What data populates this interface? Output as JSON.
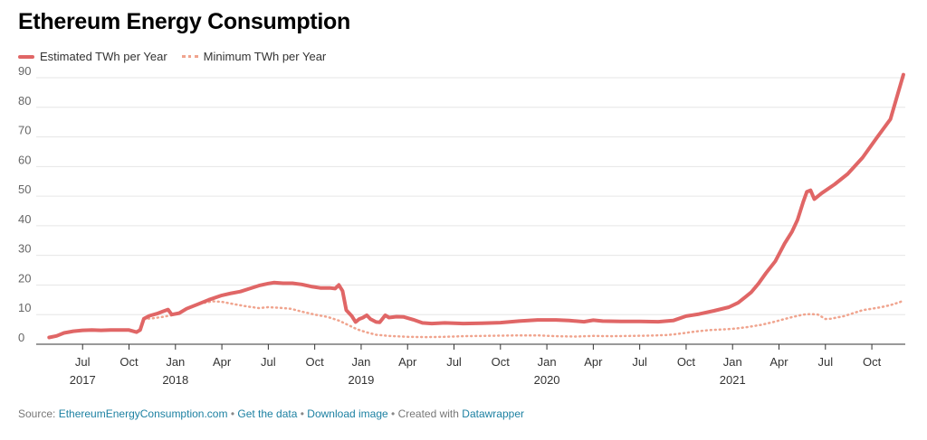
{
  "title": "Ethereum Energy Consumption",
  "footer": {
    "prefix": "Source:",
    "source_link": "EthereumEnergyConsumption.com",
    "get_data": "Get the data",
    "download": "Download image",
    "created_with": "Created with",
    "datawrapper": "Datawrapper",
    "separator": "•"
  },
  "chart_data": {
    "type": "line",
    "title": "Ethereum Energy Consumption",
    "xlabel": "",
    "ylabel": "",
    "ylim": [
      0,
      90
    ],
    "yticks": [
      0,
      10,
      20,
      30,
      40,
      50,
      60,
      70,
      80,
      90
    ],
    "grid": true,
    "legend_position": "top-left",
    "xticks": [
      {
        "t": 2017.5,
        "label": "Jul",
        "year": "2017"
      },
      {
        "t": 2017.75,
        "label": "Oct",
        "year": ""
      },
      {
        "t": 2018.0,
        "label": "Jan",
        "year": "2018"
      },
      {
        "t": 2018.25,
        "label": "Apr",
        "year": ""
      },
      {
        "t": 2018.5,
        "label": "Jul",
        "year": ""
      },
      {
        "t": 2018.75,
        "label": "Oct",
        "year": ""
      },
      {
        "t": 2019.0,
        "label": "Jan",
        "year": "2019"
      },
      {
        "t": 2019.25,
        "label": "Apr",
        "year": ""
      },
      {
        "t": 2019.5,
        "label": "Jul",
        "year": ""
      },
      {
        "t": 2019.75,
        "label": "Oct",
        "year": ""
      },
      {
        "t": 2020.0,
        "label": "Jan",
        "year": "2020"
      },
      {
        "t": 2020.25,
        "label": "Apr",
        "year": ""
      },
      {
        "t": 2020.5,
        "label": "Jul",
        "year": ""
      },
      {
        "t": 2020.75,
        "label": "Oct",
        "year": ""
      },
      {
        "t": 2021.0,
        "label": "Jan",
        "year": "2021"
      },
      {
        "t": 2021.25,
        "label": "Apr",
        "year": ""
      },
      {
        "t": 2021.5,
        "label": "Jul",
        "year": ""
      },
      {
        "t": 2021.75,
        "label": "Oct",
        "year": ""
      }
    ],
    "xlim": [
      2017.26,
      2021.93
    ],
    "series": [
      {
        "name": "Estimated TWh per Year",
        "style": "solid",
        "color": "#e06666",
        "points": [
          [
            2017.32,
            2.3
          ],
          [
            2017.36,
            2.8
          ],
          [
            2017.4,
            3.8
          ],
          [
            2017.45,
            4.4
          ],
          [
            2017.5,
            4.7
          ],
          [
            2017.55,
            4.8
          ],
          [
            2017.6,
            4.7
          ],
          [
            2017.65,
            4.8
          ],
          [
            2017.7,
            4.8
          ],
          [
            2017.75,
            4.8
          ],
          [
            2017.79,
            4.1
          ],
          [
            2017.81,
            4.8
          ],
          [
            2017.83,
            8.6
          ],
          [
            2017.86,
            9.6
          ],
          [
            2017.9,
            10.3
          ],
          [
            2017.93,
            11.0
          ],
          [
            2017.96,
            11.7
          ],
          [
            2017.98,
            10.0
          ],
          [
            2018.02,
            10.5
          ],
          [
            2018.06,
            12.0
          ],
          [
            2018.12,
            13.5
          ],
          [
            2018.18,
            15.0
          ],
          [
            2018.25,
            16.5
          ],
          [
            2018.3,
            17.2
          ],
          [
            2018.35,
            17.8
          ],
          [
            2018.4,
            18.8
          ],
          [
            2018.45,
            19.8
          ],
          [
            2018.5,
            20.5
          ],
          [
            2018.53,
            20.8
          ],
          [
            2018.58,
            20.6
          ],
          [
            2018.63,
            20.6
          ],
          [
            2018.68,
            20.2
          ],
          [
            2018.73,
            19.5
          ],
          [
            2018.78,
            19.0
          ],
          [
            2018.83,
            19.0
          ],
          [
            2018.86,
            18.8
          ],
          [
            2018.88,
            20.0
          ],
          [
            2018.9,
            18.0
          ],
          [
            2018.92,
            11.5
          ],
          [
            2018.95,
            9.5
          ],
          [
            2018.97,
            7.5
          ],
          [
            2018.99,
            8.5
          ],
          [
            2019.01,
            9.0
          ],
          [
            2019.03,
            9.8
          ],
          [
            2019.05,
            8.5
          ],
          [
            2019.08,
            7.5
          ],
          [
            2019.1,
            7.4
          ],
          [
            2019.13,
            9.8
          ],
          [
            2019.15,
            9.0
          ],
          [
            2019.19,
            9.3
          ],
          [
            2019.23,
            9.2
          ],
          [
            2019.28,
            8.3
          ],
          [
            2019.33,
            7.2
          ],
          [
            2019.38,
            7.0
          ],
          [
            2019.45,
            7.2
          ],
          [
            2019.55,
            7.0
          ],
          [
            2019.65,
            7.1
          ],
          [
            2019.75,
            7.3
          ],
          [
            2019.85,
            7.8
          ],
          [
            2019.95,
            8.2
          ],
          [
            2020.05,
            8.2
          ],
          [
            2020.12,
            8.0
          ],
          [
            2020.2,
            7.6
          ],
          [
            2020.25,
            8.1
          ],
          [
            2020.3,
            7.8
          ],
          [
            2020.4,
            7.7
          ],
          [
            2020.5,
            7.7
          ],
          [
            2020.6,
            7.6
          ],
          [
            2020.68,
            8.0
          ],
          [
            2020.75,
            9.5
          ],
          [
            2020.82,
            10.2
          ],
          [
            2020.9,
            11.3
          ],
          [
            2020.98,
            12.5
          ],
          [
            2021.03,
            14.0
          ],
          [
            2021.07,
            16.0
          ],
          [
            2021.1,
            17.5
          ],
          [
            2021.14,
            20.5
          ],
          [
            2021.18,
            24.0
          ],
          [
            2021.23,
            28.0
          ],
          [
            2021.28,
            34.0
          ],
          [
            2021.32,
            38.0
          ],
          [
            2021.35,
            42.0
          ],
          [
            2021.38,
            48.0
          ],
          [
            2021.4,
            51.5
          ],
          [
            2021.42,
            52.0
          ],
          [
            2021.44,
            49.0
          ],
          [
            2021.48,
            51.0
          ],
          [
            2021.55,
            54.0
          ],
          [
            2021.62,
            57.5
          ],
          [
            2021.7,
            63.0
          ],
          [
            2021.78,
            70.0
          ],
          [
            2021.85,
            76.0
          ],
          [
            2021.92,
            91.0
          ]
        ]
      },
      {
        "name": "Minimum TWh per Year",
        "style": "dotted",
        "color": "#f0a48e",
        "points": [
          [
            2017.83,
            8.5
          ],
          [
            2017.88,
            8.8
          ],
          [
            2017.93,
            9.2
          ],
          [
            2017.98,
            9.8
          ],
          [
            2018.02,
            10.5
          ],
          [
            2018.08,
            12.5
          ],
          [
            2018.14,
            13.8
          ],
          [
            2018.2,
            14.5
          ],
          [
            2018.25,
            14.3
          ],
          [
            2018.32,
            13.5
          ],
          [
            2018.38,
            12.8
          ],
          [
            2018.45,
            12.2
          ],
          [
            2018.5,
            12.5
          ],
          [
            2018.56,
            12.3
          ],
          [
            2018.62,
            12.0
          ],
          [
            2018.68,
            11.0
          ],
          [
            2018.75,
            10.0
          ],
          [
            2018.82,
            9.2
          ],
          [
            2018.88,
            8.0
          ],
          [
            2018.93,
            6.5
          ],
          [
            2018.98,
            5.0
          ],
          [
            2019.03,
            4.0
          ],
          [
            2019.08,
            3.2
          ],
          [
            2019.15,
            2.8
          ],
          [
            2019.25,
            2.5
          ],
          [
            2019.35,
            2.4
          ],
          [
            2019.45,
            2.5
          ],
          [
            2019.55,
            2.7
          ],
          [
            2019.65,
            2.8
          ],
          [
            2019.75,
            2.9
          ],
          [
            2019.85,
            3.0
          ],
          [
            2019.95,
            3.0
          ],
          [
            2020.05,
            2.7
          ],
          [
            2020.15,
            2.6
          ],
          [
            2020.25,
            2.8
          ],
          [
            2020.35,
            2.7
          ],
          [
            2020.45,
            2.8
          ],
          [
            2020.55,
            2.9
          ],
          [
            2020.65,
            3.1
          ],
          [
            2020.72,
            3.6
          ],
          [
            2020.8,
            4.3
          ],
          [
            2020.88,
            4.8
          ],
          [
            2020.95,
            5.0
          ],
          [
            2021.02,
            5.3
          ],
          [
            2021.08,
            5.8
          ],
          [
            2021.15,
            6.5
          ],
          [
            2021.22,
            7.5
          ],
          [
            2021.28,
            8.5
          ],
          [
            2021.33,
            9.3
          ],
          [
            2021.38,
            10.0
          ],
          [
            2021.42,
            10.2
          ],
          [
            2021.46,
            10.0
          ],
          [
            2021.5,
            8.5
          ],
          [
            2021.53,
            8.6
          ],
          [
            2021.56,
            9.0
          ],
          [
            2021.6,
            9.5
          ],
          [
            2021.65,
            10.5
          ],
          [
            2021.7,
            11.5
          ],
          [
            2021.75,
            12.0
          ],
          [
            2021.8,
            12.5
          ],
          [
            2021.85,
            13.2
          ],
          [
            2021.9,
            14.2
          ],
          [
            2021.92,
            14.8
          ]
        ]
      }
    ]
  }
}
